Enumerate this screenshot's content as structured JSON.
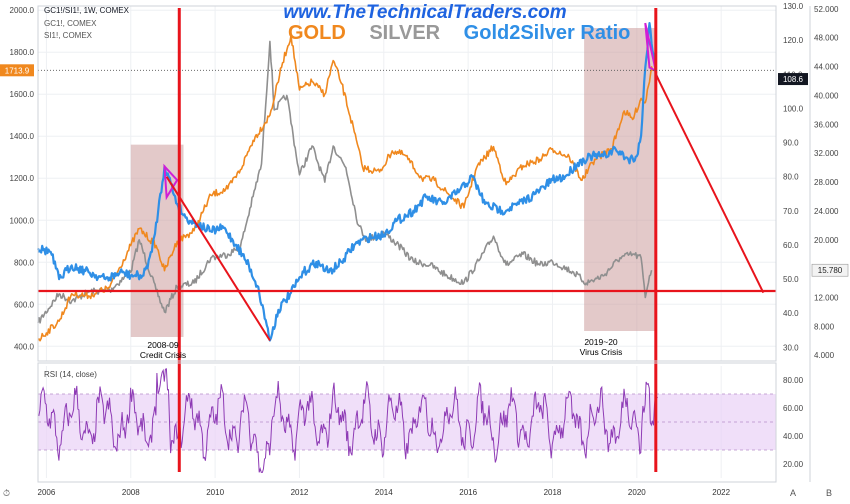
{
  "header": {
    "brand": "www.TheTechnicalTraders.com",
    "symbol_line": "GC1!/SI1!, 1W, COMEX",
    "line2": "GC1!, COMEX",
    "line3": "SI1!, COMEX",
    "rsi_label": "RSI (14, close)",
    "corner_left": "⏱",
    "corner_a": "A",
    "corner_b": "B"
  },
  "titles": [
    {
      "text": "GOLD",
      "color": "#f0881e"
    },
    {
      "text": "SILVER",
      "color": "#999999"
    },
    {
      "text": "Gold2Silver Ratio",
      "color": "#2f8fe6"
    }
  ],
  "annotations": [
    {
      "line1": "2008-09",
      "line2": "Credit Crisis"
    },
    {
      "line1": "2019~20",
      "line2": "Virus Crisis"
    }
  ],
  "badges": {
    "gold_price": "1713.9",
    "ratio_value": "108.6",
    "silver_value": "15.780"
  },
  "colors": {
    "gold": "#f0881e",
    "silver": "#8f8f8f",
    "ratio": "#2f8fe6",
    "rsi": "#8e3bb5",
    "trend": "#e8141c",
    "highlight": "#cc9c9c"
  },
  "chart_data": [
    {
      "type": "line",
      "title": "GOLD SILVER Gold2Silver Ratio",
      "x_ticks": [
        "2006",
        "2008",
        "2010",
        "2012",
        "2014",
        "2016",
        "2018",
        "2020",
        "2022"
      ],
      "axes": {
        "gold_left": {
          "ticks": [
            "400.0",
            "600.0",
            "800.0",
            "1000.0",
            "1200.0",
            "1400.0",
            "1600.0",
            "1800.0",
            "2000.0"
          ],
          "range": [
            330,
            2020
          ]
        },
        "ratio_middle": {
          "ticks": [
            "30.0",
            "40.0",
            "50.0",
            "60.0",
            "70.0",
            "80.0",
            "90.0",
            "100.0",
            "110.0",
            "120.0",
            "130.0"
          ],
          "range": [
            26,
            130
          ]
        },
        "silver_right": {
          "ticks": [
            "4.000",
            "8.000",
            "12.000",
            "16.000",
            "20.000",
            "24.000",
            "28.000",
            "32.000",
            "36.000",
            "40.000",
            "44.000",
            "48.000",
            "52.000"
          ],
          "range": [
            3.2,
            52.4
          ]
        }
      },
      "series": [
        {
          "name": "GOLD",
          "axis": "gold_left",
          "points": [
            [
              2005.8,
              430
            ],
            [
              2006.3,
              520
            ],
            [
              2006.6,
              650
            ],
            [
              2007.0,
              640
            ],
            [
              2007.5,
              680
            ],
            [
              2008.0,
              880
            ],
            [
              2008.2,
              960
            ],
            [
              2008.6,
              880
            ],
            [
              2008.8,
              760
            ],
            [
              2009.1,
              900
            ],
            [
              2009.5,
              950
            ],
            [
              2009.9,
              1120
            ],
            [
              2010.3,
              1150
            ],
            [
              2010.6,
              1240
            ],
            [
              2010.9,
              1380
            ],
            [
              2011.3,
              1500
            ],
            [
              2011.6,
              1750
            ],
            [
              2011.8,
              1880
            ],
            [
              2012.0,
              1620
            ],
            [
              2012.3,
              1660
            ],
            [
              2012.6,
              1600
            ],
            [
              2012.8,
              1760
            ],
            [
              2013.0,
              1650
            ],
            [
              2013.3,
              1420
            ],
            [
              2013.5,
              1250
            ],
            [
              2013.9,
              1230
            ],
            [
              2014.2,
              1330
            ],
            [
              2014.5,
              1310
            ],
            [
              2014.9,
              1200
            ],
            [
              2015.2,
              1190
            ],
            [
              2015.5,
              1130
            ],
            [
              2015.9,
              1060
            ],
            [
              2016.2,
              1250
            ],
            [
              2016.6,
              1350
            ],
            [
              2016.9,
              1170
            ],
            [
              2017.3,
              1260
            ],
            [
              2017.7,
              1290
            ],
            [
              2018.0,
              1340
            ],
            [
              2018.4,
              1300
            ],
            [
              2018.7,
              1190
            ],
            [
              2019.0,
              1290
            ],
            [
              2019.4,
              1340
            ],
            [
              2019.7,
              1520
            ],
            [
              2019.9,
              1480
            ],
            [
              2020.1,
              1580
            ],
            [
              2020.2,
              1560
            ],
            [
              2020.35,
              1730
            ],
            [
              2020.4,
              1713.9
            ]
          ]
        },
        {
          "name": "SILVER",
          "axis": "silver_right",
          "points": [
            [
              2005.8,
              8.5
            ],
            [
              2006.3,
              12.5
            ],
            [
              2006.6,
              11.5
            ],
            [
              2007.0,
              12.8
            ],
            [
              2007.5,
              13.0
            ],
            [
              2008.0,
              15.5
            ],
            [
              2008.2,
              20.0
            ],
            [
              2008.6,
              13.0
            ],
            [
              2008.8,
              10.0
            ],
            [
              2009.1,
              13.5
            ],
            [
              2009.5,
              14.0
            ],
            [
              2009.9,
              17.5
            ],
            [
              2010.3,
              18.0
            ],
            [
              2010.6,
              19.0
            ],
            [
              2010.9,
              26.0
            ],
            [
              2011.1,
              30.5
            ],
            [
              2011.3,
              47.5
            ],
            [
              2011.4,
              38.0
            ],
            [
              2011.7,
              40.0
            ],
            [
              2012.0,
              29.0
            ],
            [
              2012.3,
              33.0
            ],
            [
              2012.6,
              28.0
            ],
            [
              2012.8,
              33.0
            ],
            [
              2013.1,
              30.0
            ],
            [
              2013.4,
              22.0
            ],
            [
              2013.6,
              20.0
            ],
            [
              2014.0,
              21.0
            ],
            [
              2014.3,
              19.5
            ],
            [
              2014.7,
              17.0
            ],
            [
              2015.1,
              16.5
            ],
            [
              2015.5,
              15.0
            ],
            [
              2015.9,
              14.0
            ],
            [
              2016.3,
              17.5
            ],
            [
              2016.6,
              20.5
            ],
            [
              2016.9,
              16.5
            ],
            [
              2017.3,
              18.0
            ],
            [
              2017.7,
              16.5
            ],
            [
              2018.0,
              17.0
            ],
            [
              2018.5,
              15.5
            ],
            [
              2018.8,
              14.0
            ],
            [
              2019.2,
              15.0
            ],
            [
              2019.6,
              17.5
            ],
            [
              2019.9,
              18.0
            ],
            [
              2020.1,
              17.5
            ],
            [
              2020.2,
              12.0
            ],
            [
              2020.3,
              15.0
            ],
            [
              2020.35,
              15.78
            ]
          ]
        },
        {
          "name": "Gold2Silver Ratio",
          "axis": "ratio_middle",
          "points": [
            [
              2005.8,
              59
            ],
            [
              2006.1,
              58
            ],
            [
              2006.3,
              50
            ],
            [
              2006.6,
              54
            ],
            [
              2007.0,
              52
            ],
            [
              2007.4,
              50
            ],
            [
              2007.8,
              52
            ],
            [
              2008.0,
              51
            ],
            [
              2008.3,
              51
            ],
            [
              2008.5,
              58
            ],
            [
              2008.65,
              70
            ],
            [
              2008.8,
              83
            ],
            [
              2008.9,
              80
            ],
            [
              2009.1,
              72
            ],
            [
              2009.3,
              68
            ],
            [
              2009.6,
              66
            ],
            [
              2009.9,
              64
            ],
            [
              2010.2,
              65
            ],
            [
              2010.5,
              60
            ],
            [
              2010.8,
              54
            ],
            [
              2011.0,
              48
            ],
            [
              2011.2,
              38
            ],
            [
              2011.3,
              32
            ],
            [
              2011.5,
              41
            ],
            [
              2011.8,
              46
            ],
            [
              2012.1,
              52
            ],
            [
              2012.4,
              55
            ],
            [
              2012.7,
              52
            ],
            [
              2013.0,
              55
            ],
            [
              2013.3,
              60
            ],
            [
              2013.6,
              62
            ],
            [
              2014.0,
              63
            ],
            [
              2014.3,
              67
            ],
            [
              2014.7,
              70
            ],
            [
              2015.0,
              74
            ],
            [
              2015.4,
              72
            ],
            [
              2015.8,
              76
            ],
            [
              2016.1,
              80
            ],
            [
              2016.4,
              72
            ],
            [
              2016.8,
              70
            ],
            [
              2017.2,
              72
            ],
            [
              2017.6,
              75
            ],
            [
              2018.0,
              79
            ],
            [
              2018.3,
              80
            ],
            [
              2018.6,
              84
            ],
            [
              2018.9,
              86
            ],
            [
              2019.2,
              86
            ],
            [
              2019.5,
              88
            ],
            [
              2019.8,
              85
            ],
            [
              2020.0,
              86
            ],
            [
              2020.1,
              92
            ],
            [
              2020.2,
              112
            ],
            [
              2020.3,
              125
            ],
            [
              2020.45,
              110
            ],
            [
              2020.5,
              108.6
            ]
          ]
        },
        {
          "name": "RSI (14, close)",
          "axis": "rsi",
          "range": [
            10,
            90
          ],
          "ticks": [
            "20.00",
            "40.00",
            "60.00",
            "80.00"
          ],
          "band": [
            30,
            70
          ]
        }
      ],
      "trendlines": [
        {
          "axis": "ratio_middle",
          "from": [
            2008.85,
            80
          ],
          "to": [
            2011.3,
            32
          ]
        },
        {
          "axis": "ratio_middle",
          "from": [
            2020.45,
            110
          ],
          "to": [
            2023.0,
            46
          ]
        }
      ],
      "vertical_markers": [
        2009.15,
        2020.45
      ],
      "horizontal_level": {
        "axis": "ratio_middle",
        "value": 46.5
      },
      "shaded_regions": [
        [
          2008.0,
          2009.25
        ],
        [
          2018.75,
          2020.45
        ]
      ]
    }
  ]
}
